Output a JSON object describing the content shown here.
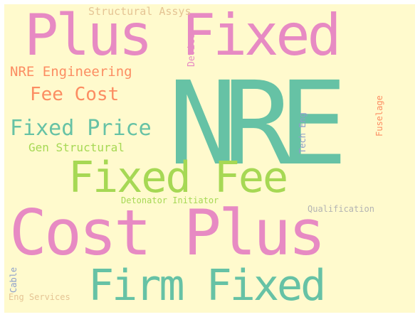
{
  "colors": {
    "background": "#fffacd",
    "teal": "#66c2a5",
    "pink": "#e78ac3",
    "lime": "#a6d854",
    "salmon": "#fc8d62",
    "tan": "#e5c494",
    "periwinkle": "#8da0cb",
    "grey": "#b3b3b3"
  },
  "words": [
    {
      "text": "NRE",
      "color": "#66c2a5"
    },
    {
      "text": "Plus Fixed",
      "color": "#e78ac3"
    },
    {
      "text": "Cost Plus",
      "color": "#e78ac3"
    },
    {
      "text": "Fixed Fee",
      "color": "#a6d854"
    },
    {
      "text": "Firm Fixed",
      "color": "#66c2a5"
    },
    {
      "text": "Fixed Price",
      "color": "#66c2a5"
    },
    {
      "text": "Fee Cost",
      "color": "#fc8d62"
    },
    {
      "text": "NRE Engineering",
      "color": "#fc8d62"
    },
    {
      "text": "Structural Assys",
      "color": "#e5c494"
    },
    {
      "text": "Gen Structural",
      "color": "#a6d854"
    },
    {
      "text": "Detonator Initiator",
      "color": "#a6d854"
    },
    {
      "text": "Qualification",
      "color": "#b3b3b3"
    },
    {
      "text": "Eng Services",
      "color": "#e5c494"
    },
    {
      "text": "Device",
      "color": "#e78ac3"
    },
    {
      "text": "Tech Eng",
      "color": "#8da0cb"
    },
    {
      "text": "Fuselage",
      "color": "#fc8d62"
    },
    {
      "text": "Cable",
      "color": "#8da0cb"
    }
  ]
}
